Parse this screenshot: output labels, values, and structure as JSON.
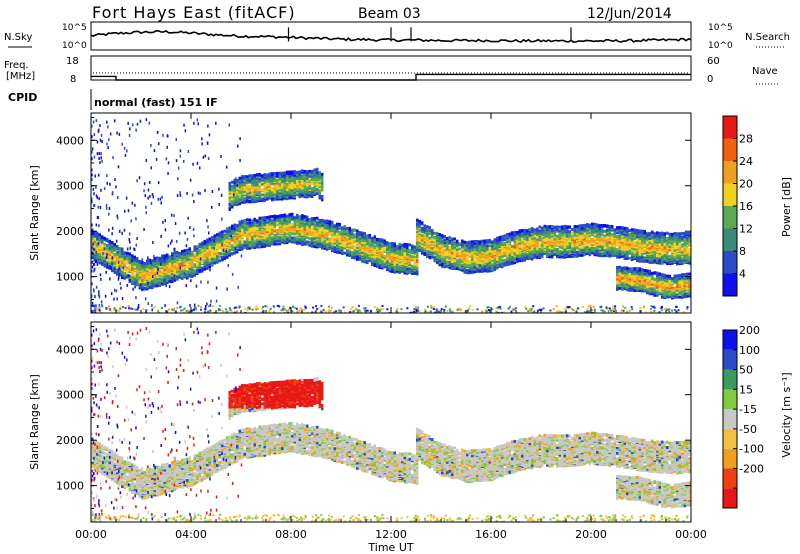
{
  "header": {
    "title": "Fort Hays East (fitACF)",
    "beam": "Beam 03",
    "date": "12/Jun/2014"
  },
  "colors": {
    "power_scale": [
      "#1010ee",
      "#2a4cc8",
      "#3a8a78",
      "#5aaa55",
      "#f0d020",
      "#f0a020",
      "#f06010",
      "#e81818"
    ],
    "velocity_scale": [
      "#e81818",
      "#f04010",
      "#f0a020",
      "#f0c040",
      "#c8c8c8",
      "#80cc40",
      "#3a9a60",
      "#2a4cc8",
      "#1010ee"
    ]
  },
  "chart_data": [
    {
      "type": "line",
      "name": "noise-panel",
      "left_label": "N.Sky",
      "right_label": "N.Search",
      "left_ticks": [
        "10^5",
        "10^0"
      ],
      "right_ticks": [
        "10^5",
        "10^0"
      ],
      "yscale": "log",
      "x_hours": [
        0,
        1,
        2,
        3,
        4,
        5,
        6,
        7,
        8,
        9,
        10,
        11,
        12,
        13,
        14,
        15,
        16,
        17,
        18,
        19,
        20,
        21,
        22,
        23,
        24
      ],
      "sky_level_log": [
        2.8,
        3.3,
        3.6,
        3.7,
        3.4,
        3.0,
        2.7,
        2.6,
        2.4,
        2.2,
        2.0,
        1.9,
        1.8,
        1.8,
        1.7,
        1.7,
        1.7,
        1.6,
        1.6,
        1.6,
        1.6,
        1.6,
        1.7,
        1.8,
        2.0
      ]
    },
    {
      "type": "line",
      "name": "frequency-panel",
      "left_label": "Freq. [MHz]",
      "right_label": "Nave",
      "left_ticks": [
        18,
        8
      ],
      "right_ticks": [
        60,
        0
      ],
      "freq_steps": [
        [
          0,
          12
        ],
        [
          1,
          10.5
        ],
        [
          13,
          12.8
        ],
        [
          24,
          12.8
        ]
      ],
      "nave_level": 10
    },
    {
      "type": "table",
      "name": "cpid-strip",
      "label": "CPID",
      "program": "normal (fast) 151 IF"
    },
    {
      "type": "heatmap",
      "name": "power",
      "ylabel": "Slant Range [km]",
      "yticks": [
        1000,
        2000,
        3000,
        4000
      ],
      "ylim": [
        200,
        4600
      ],
      "colorbar_label": "Power [dB]",
      "colorbar_ticks": [
        4,
        8,
        12,
        16,
        20,
        24,
        28
      ],
      "colorbar_range": [
        0,
        32
      ],
      "echo_bands": [
        {
          "t0": 0.0,
          "t1": 13.0,
          "knots_t": [
            0,
            2,
            4,
            6,
            8,
            9,
            10,
            12,
            13
          ],
          "range_km": [
            1750,
            1050,
            1350,
            1950,
            2100,
            2000,
            1850,
            1450,
            1400
          ],
          "width_km": 320,
          "peak_db": 22
        },
        {
          "t0": 13.0,
          "t1": 24.0,
          "knots_t": [
            13,
            14,
            15,
            16,
            17,
            18,
            19,
            20,
            21,
            22,
            23,
            24
          ],
          "range_km": [
            1950,
            1600,
            1450,
            1500,
            1700,
            1800,
            1800,
            1850,
            1800,
            1700,
            1650,
            1650
          ],
          "width_km": 330,
          "peak_db": 22
        },
        {
          "t0": 5.5,
          "t1": 9.2,
          "knots_t": [
            5.5,
            6,
            7,
            8,
            9,
            9.2
          ],
          "range_km": [
            2800,
            2950,
            3000,
            3050,
            3100,
            3000
          ],
          "width_km": 300,
          "peak_db": 20
        },
        {
          "t0": 21.0,
          "t1": 24.0,
          "knots_t": [
            21,
            22,
            23,
            24
          ],
          "range_km": [
            1000,
            950,
            800,
            850
          ],
          "width_km": 250,
          "peak_db": 24
        }
      ]
    },
    {
      "type": "heatmap",
      "name": "velocity",
      "ylabel": "Slant Range [km]",
      "yticks": [
        1000,
        2000,
        3000,
        4000
      ],
      "ylim": [
        200,
        4600
      ],
      "colorbar_label": "Velocity [m s⁻¹]",
      "colorbar_ticks": [
        200,
        100,
        50,
        15,
        -15,
        -50,
        -100,
        -200
      ],
      "xlabel": "Time UT",
      "xticks": [
        "00:00",
        "04:00",
        "08:00",
        "12:00",
        "16:00",
        "20:00",
        "00:00"
      ],
      "xtick_hours": [
        0,
        4,
        8,
        12,
        16,
        20,
        24
      ],
      "fast_patch": {
        "t0": 5.5,
        "t1": 9.2,
        "range_km": [
          2750,
          3350
        ],
        "velocity": -250
      }
    }
  ]
}
